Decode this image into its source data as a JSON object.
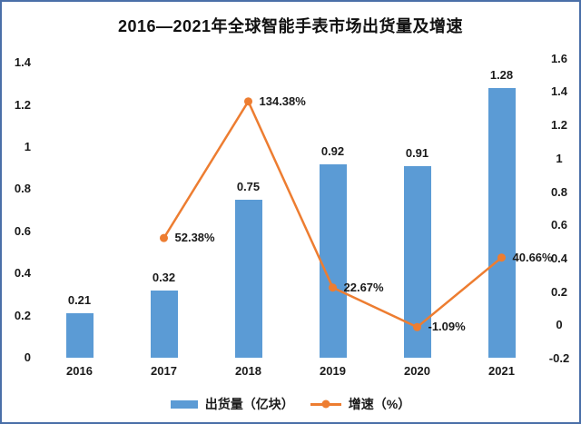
{
  "title": "2016—2021年全球智能手表市场出货量及增速",
  "colors": {
    "frame_border": "#4a6fa8",
    "bar": "#5B9BD5",
    "line": "#ED7D31",
    "text": "#1a1a1a",
    "background": "#ffffff"
  },
  "legend": [
    {
      "label": "出货量（亿块）",
      "type": "bar",
      "color": "#5B9BD5"
    },
    {
      "label": "增速（%）",
      "type": "line",
      "color": "#ED7D31"
    }
  ],
  "chart_data": {
    "type": "combo-bar-line",
    "title": "2016—2021年全球智能手表市场出货量及增速",
    "categories": [
      "2016",
      "2017",
      "2018",
      "2019",
      "2020",
      "2021"
    ],
    "series": [
      {
        "name": "出货量（亿块）",
        "type": "bar",
        "axis": "left",
        "color": "#5B9BD5",
        "values": [
          0.21,
          0.32,
          0.75,
          0.92,
          0.91,
          1.28
        ],
        "labels": [
          "0.21",
          "0.32",
          "0.75",
          "0.92",
          "0.91",
          "1.28"
        ]
      },
      {
        "name": "增速（%）",
        "type": "line",
        "axis": "right",
        "color": "#ED7D31",
        "values_percent": [
          null,
          52.38,
          134.38,
          22.67,
          -1.09,
          40.66
        ],
        "labels": [
          null,
          "52.38%",
          "134.38%",
          "22.67%",
          "-1.09%",
          "40.66%"
        ]
      }
    ],
    "left_axis": {
      "min": 0,
      "max": 1.4,
      "step": 0.2,
      "ticks": [
        "0",
        "0.2",
        "0.4",
        "0.6",
        "0.8",
        "1",
        "1.2",
        "1.4"
      ]
    },
    "right_axis": {
      "min": -0.2,
      "max": 1.6,
      "step": 0.2,
      "ticks": [
        "-0.2",
        "0",
        "0.2",
        "0.4",
        "0.6",
        "0.8",
        "1",
        "1.2",
        "1.4",
        "1.6"
      ]
    },
    "grid": false,
    "legend_position": "bottom"
  }
}
